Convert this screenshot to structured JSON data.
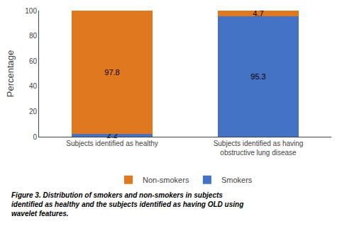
{
  "chart_data": {
    "type": "bar",
    "stacked": true,
    "categories": [
      "Subjects identified as healthy",
      "Subjects identified as having\nobstructive lung disease"
    ],
    "series": [
      {
        "name": "Smokers",
        "color": "#4472C4",
        "values": [
          2.2,
          95.3
        ]
      },
      {
        "name": "Non-smokers",
        "color": "#E07820",
        "values": [
          97.8,
          4.7
        ]
      }
    ],
    "ylabel": "Percentage",
    "ylim": [
      0,
      100
    ],
    "yticks": [
      0,
      20,
      40,
      60,
      80,
      100
    ],
    "grid": false,
    "legend": "bottom",
    "data_labels": true,
    "annotations": [
      "Figure 3.",
      "Distribution of smokers and non-smokers in subjects\nidentified as healthy and the subjects identified as having OLD using\nwavelet features."
    ]
  }
}
